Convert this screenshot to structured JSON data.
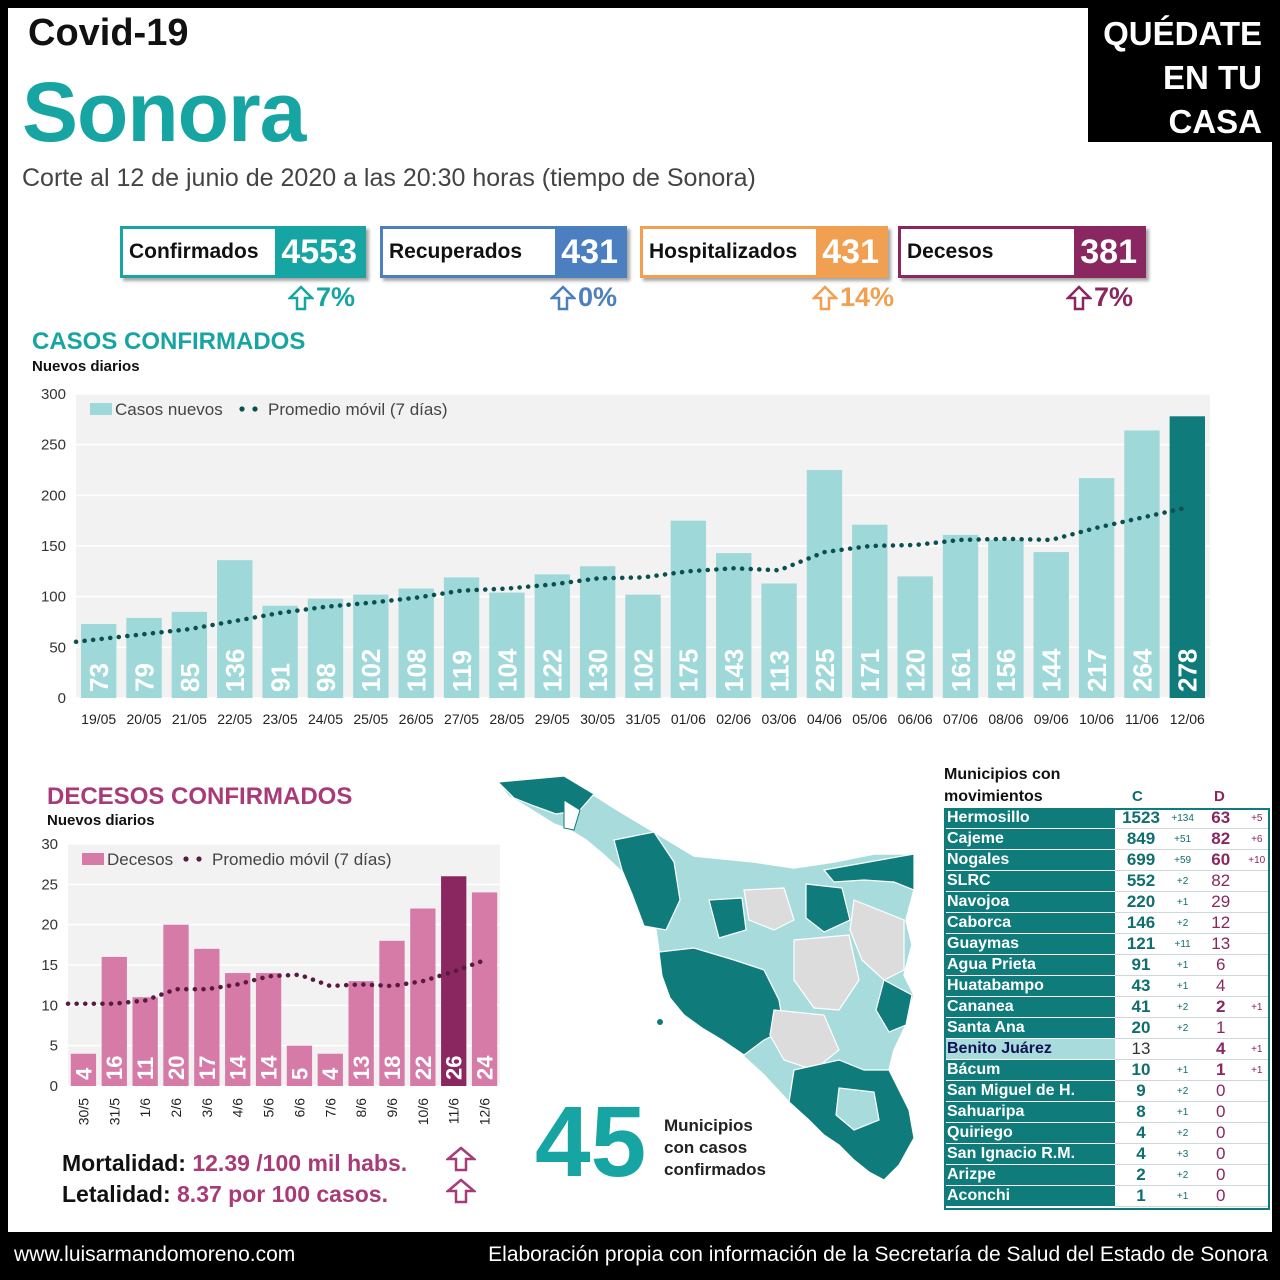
{
  "header": {
    "app_title": "Covid-19",
    "region": "Sonora",
    "cutoff": "Corte al 12 de junio de 2020 a las 20:30 horas (tiempo de Sonora)",
    "stay_home": [
      "QUÉDATE",
      "EN TU",
      "CASA"
    ]
  },
  "kpis": [
    {
      "label": "Confirmados",
      "value": "4553",
      "change": "7%",
      "color": "#17a5a3"
    },
    {
      "label": "Recuperados",
      "value": "431",
      "change": "0%",
      "color": "#4c7fc0"
    },
    {
      "label": "Hospitalizados",
      "value": "431",
      "change": "14%",
      "color": "#f0a050"
    },
    {
      "label": "Decesos",
      "value": "381",
      "change": "7%",
      "color": "#8a2760"
    }
  ],
  "cases": {
    "title": "CASOS CONFIRMADOS",
    "subtitle": "Nuevos diarios"
  },
  "deaths": {
    "title": "DECESOS CONFIRMADOS",
    "subtitle": "Nuevos diarios",
    "mortality_label": "Mortalidad:",
    "mortality_value": "12.39 /100 mil habs.",
    "lethality_label": "Letalidad:",
    "lethality_value": "8.37 por 100 casos."
  },
  "chart_data": [
    {
      "type": "bar",
      "title": "CASOS CONFIRMADOS",
      "ylabel": "Nuevos diarios",
      "categories": [
        "19/05",
        "20/05",
        "21/05",
        "22/05",
        "23/05",
        "24/05",
        "25/05",
        "26/05",
        "27/05",
        "28/05",
        "29/05",
        "30/05",
        "31/05",
        "01/06",
        "02/06",
        "03/06",
        "04/06",
        "05/06",
        "06/06",
        "07/06",
        "08/06",
        "09/06",
        "10/06",
        "11/06",
        "12/06"
      ],
      "series": [
        {
          "name": "Casos nuevos",
          "values": [
            73,
            79,
            85,
            136,
            91,
            98,
            102,
            108,
            119,
            104,
            122,
            130,
            102,
            175,
            143,
            113,
            225,
            171,
            120,
            161,
            156,
            144,
            217,
            264,
            278
          ]
        },
        {
          "name": "Promedio móvil (7 días)",
          "values": [
            58,
            63,
            68,
            76,
            84,
            90,
            94,
            99,
            106,
            108,
            112,
            118,
            119,
            125,
            128,
            126,
            144,
            150,
            151,
            156,
            157,
            156,
            168,
            178,
            188
          ]
        }
      ],
      "ylim": [
        0,
        300
      ],
      "yticks": [
        "0",
        "50",
        "100",
        "150",
        "200",
        "250",
        "300"
      ],
      "legend": [
        "Casos nuevos",
        "Promedio móvil (7 días)"
      ],
      "colors": {
        "bar": "#9fd8d8",
        "bar_last": "#0f7b7b",
        "line": "#0b5050"
      }
    },
    {
      "type": "bar",
      "title": "DECESOS CONFIRMADOS",
      "ylabel": "Nuevos diarios",
      "categories": [
        "30/5",
        "31/5",
        "1/6",
        "2/6",
        "3/6",
        "4/6",
        "5/6",
        "6/6",
        "7/6",
        "8/6",
        "9/6",
        "10/6",
        "11/6",
        "12/6"
      ],
      "series": [
        {
          "name": "Decesos",
          "values": [
            4,
            16,
            11,
            20,
            17,
            14,
            14,
            5,
            4,
            13,
            18,
            22,
            26,
            24
          ]
        },
        {
          "name": "Promedio móvil (7 días)",
          "values": [
            10.2,
            10.2,
            10.6,
            12,
            12,
            12.6,
            13.6,
            13.8,
            12.4,
            12.6,
            12.4,
            13,
            14.2,
            15.6
          ]
        }
      ],
      "ylim": [
        0,
        30
      ],
      "yticks": [
        "0",
        "5",
        "10",
        "15",
        "20",
        "25",
        "30"
      ],
      "legend": [
        "Decesos",
        "Promedio móvil (7 días)"
      ],
      "colors": {
        "bar": "#d67aa8",
        "bar_last": "#8a2760",
        "line": "#5a1a40"
      }
    }
  ],
  "map": {
    "count": "45",
    "label": [
      "Municipios",
      "con casos",
      "confirmados"
    ]
  },
  "table": {
    "title": [
      "Municipios con",
      "movimientos"
    ],
    "col_c": "C",
    "col_d": "D",
    "rows": [
      {
        "name": "Hermosillo",
        "c": "1523",
        "dc": "+134",
        "d": "63",
        "dd": "+5",
        "dbold": true
      },
      {
        "name": "Cajeme",
        "c": "849",
        "dc": "+51",
        "d": "82",
        "dd": "+6",
        "dbold": true
      },
      {
        "name": "Nogales",
        "c": "699",
        "dc": "+59",
        "d": "60",
        "dd": "+10",
        "dbold": true
      },
      {
        "name": "SLRC",
        "c": "552",
        "dc": "+2",
        "d": "82",
        "dd": "",
        "dbold": false
      },
      {
        "name": "Navojoa",
        "c": "220",
        "dc": "+1",
        "d": "29",
        "dd": "",
        "dbold": false
      },
      {
        "name": "Caborca",
        "c": "146",
        "dc": "+2",
        "d": "12",
        "dd": "",
        "dbold": false
      },
      {
        "name": "Guaymas",
        "c": "121",
        "dc": "+11",
        "d": "13",
        "dd": "",
        "dbold": false
      },
      {
        "name": "Agua Prieta",
        "c": "91",
        "dc": "+1",
        "d": "6",
        "dd": "",
        "dbold": false
      },
      {
        "name": "Huatabampo",
        "c": "43",
        "dc": "+1",
        "d": "4",
        "dd": "",
        "dbold": false
      },
      {
        "name": "Cananea",
        "c": "41",
        "dc": "+2",
        "d": "2",
        "dd": "+1",
        "dbold": true
      },
      {
        "name": "Santa Ana",
        "c": "20",
        "dc": "+2",
        "d": "1",
        "dd": "",
        "dbold": false
      },
      {
        "name": "Benito Juárez",
        "c": "13",
        "dc": "",
        "d": "4",
        "dd": "+1",
        "dbold": true,
        "alt": true,
        "cplain": true
      },
      {
        "name": "Bácum",
        "c": "10",
        "dc": "+1",
        "d": "1",
        "dd": "+1",
        "dbold": true
      },
      {
        "name": "San Miguel de H.",
        "c": "9",
        "dc": "+2",
        "d": "0",
        "dd": "",
        "dbold": false
      },
      {
        "name": "Sahuaripa",
        "c": "8",
        "dc": "+1",
        "d": "0",
        "dd": "",
        "dbold": false
      },
      {
        "name": "Quiriego",
        "c": "4",
        "dc": "+2",
        "d": "0",
        "dd": "",
        "dbold": false
      },
      {
        "name": "San Ignacio R.M.",
        "c": "4",
        "dc": "+3",
        "d": "0",
        "dd": "",
        "dbold": false
      },
      {
        "name": "Arizpe",
        "c": "2",
        "dc": "+2",
        "d": "0",
        "dd": "",
        "dbold": false
      },
      {
        "name": "Aconchi",
        "c": "1",
        "dc": "+1",
        "d": "0",
        "dd": "",
        "dbold": false
      }
    ]
  },
  "footer": {
    "left": "www.luisarmandomoreno.com",
    "right": "Elaboración propia con información de la Secretaría de Salud del Estado de Sonora"
  }
}
